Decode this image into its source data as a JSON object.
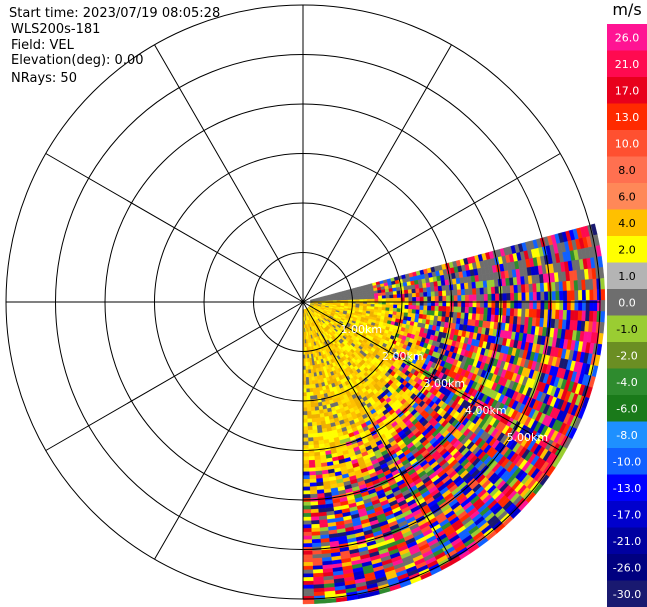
{
  "header": {
    "start_time": "Start time: 2023/07/19 08:05:28",
    "instrument": "WLS200s-181",
    "field": "Field: VEL",
    "elevation": "Elevation(deg): 0.00",
    "nrays": "NRays: 50"
  },
  "colorbar": {
    "unit": "m/s",
    "ticks": [
      "26.0",
      "21.0",
      "17.0",
      "13.0",
      "10.0",
      "8.0",
      "6.0",
      "4.0",
      "2.0",
      "1.0",
      "0.0",
      "-1.0",
      "-2.0",
      "-4.0",
      "-6.0",
      "-8.0",
      "-10.0",
      "-13.0",
      "-17.0",
      "-21.0",
      "-26.0",
      "-30.0"
    ],
    "colors": [
      "#ff1493",
      "#ff0a50",
      "#e8001c",
      "#ff2a00",
      "#ff5030",
      "#ff7050",
      "#ff8858",
      "#ffc000",
      "#ffff00",
      "#b4b4b4",
      "#6e6e6e",
      "#9acd32",
      "#6b8e23",
      "#2e8b2e",
      "#1a7a1a",
      "#1e90ff",
      "#1060ff",
      "#0000ff",
      "#0000cd",
      "#0000a0",
      "#000080",
      "#191970"
    ]
  },
  "range_labels": [
    "1.00km",
    "2.00km",
    "3.00km",
    "4.00km",
    "5.00km"
  ],
  "chart_data": {
    "type": "heatmap",
    "projection": "polar",
    "field": "VEL",
    "units": "m/s",
    "n_rays": 50,
    "azimuth_range_deg": [
      75,
      180
    ],
    "range_rings_km": [
      1,
      2,
      3,
      4,
      5,
      6
    ],
    "spokes_deg": [
      0,
      30,
      60,
      90,
      120,
      150,
      180,
      210,
      240,
      270,
      300,
      330
    ],
    "max_range_km": 6.1,
    "color_levels": [
      -30,
      -26,
      -21,
      -17,
      -13,
      -10,
      -8,
      -6,
      -4,
      -2,
      -1,
      0,
      1,
      2,
      4,
      6,
      8,
      10,
      13,
      17,
      21,
      26
    ]
  }
}
